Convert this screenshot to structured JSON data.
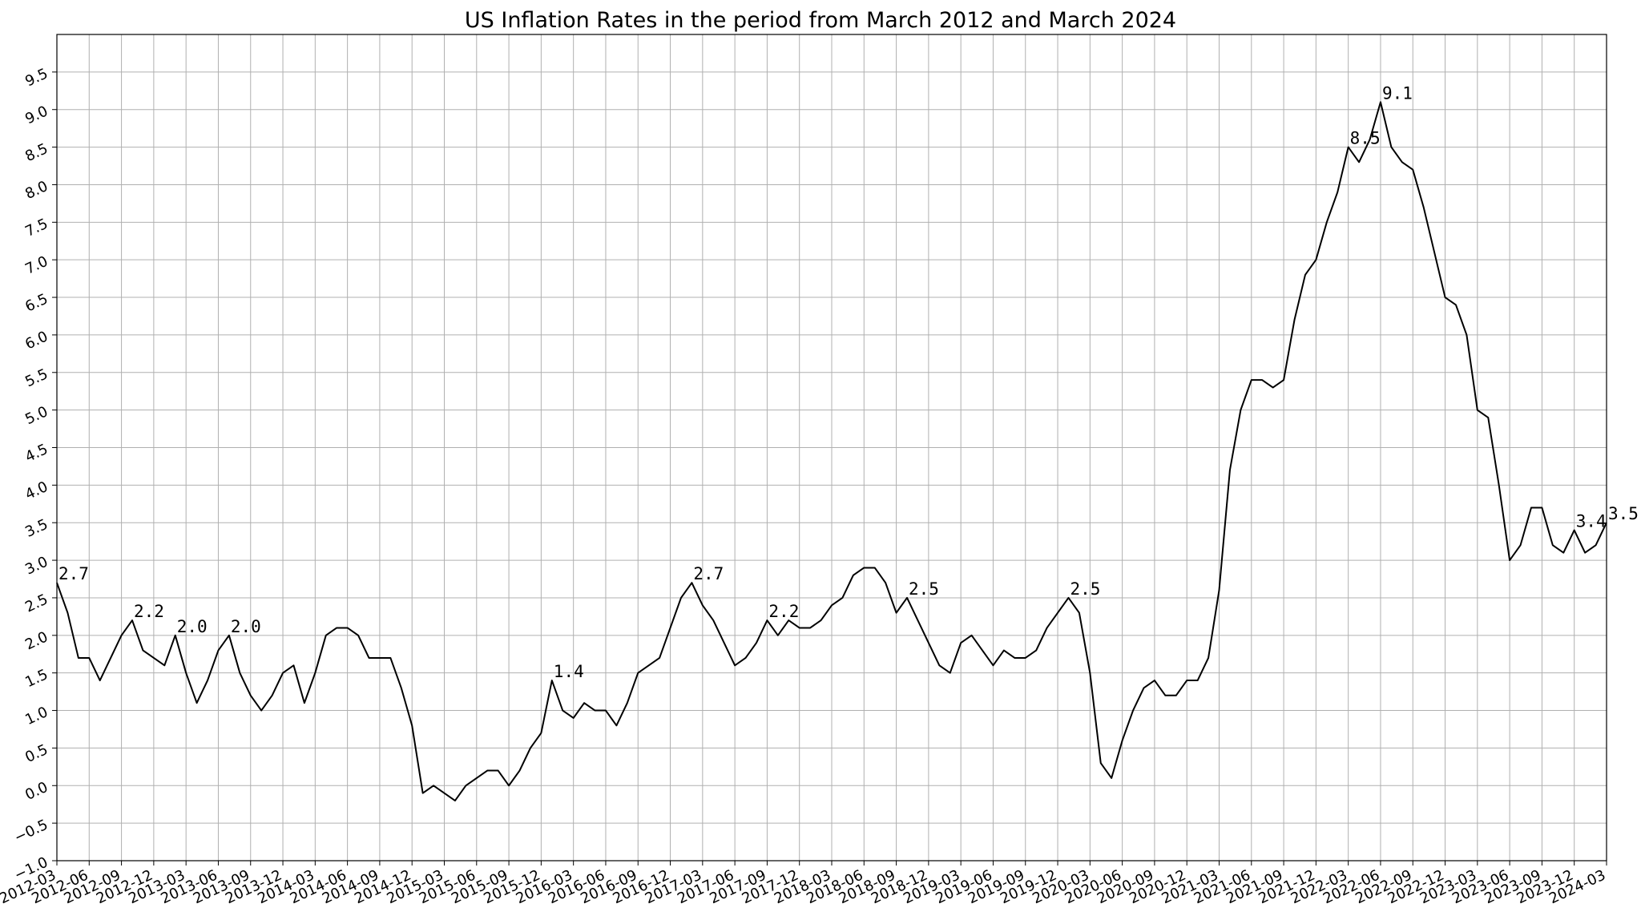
{
  "chart_data": {
    "type": "line",
    "title": "US Inflation Rates in the period from March 2012 and March 2024",
    "xlabel": "",
    "ylabel": "",
    "x_start": "2012-03",
    "x_end": "2024-03",
    "xlim": [
      "2012-03",
      "2024-03"
    ],
    "ylim": [
      -1.0,
      10.0
    ],
    "x_ticks": [
      "2012-03",
      "2012-06",
      "2012-09",
      "2012-12",
      "2013-03",
      "2013-06",
      "2013-09",
      "2013-12",
      "2014-03",
      "2014-06",
      "2014-09",
      "2014-12",
      "2015-03",
      "2015-06",
      "2015-09",
      "2015-12",
      "2016-03",
      "2016-06",
      "2016-09",
      "2016-12",
      "2017-03",
      "2017-06",
      "2017-09",
      "2017-12",
      "2018-03",
      "2018-06",
      "2018-09",
      "2018-12",
      "2019-03",
      "2019-06",
      "2019-09",
      "2019-12",
      "2020-03",
      "2020-06",
      "2020-09",
      "2020-12",
      "2021-03",
      "2021-06",
      "2021-09",
      "2021-12",
      "2022-03",
      "2022-06",
      "2022-09",
      "2022-12",
      "2023-03",
      "2023-06",
      "2023-09",
      "2023-12",
      "2024-03"
    ],
    "y_ticks": [
      "−1.0",
      "−0.5",
      "0.0",
      "0.5",
      "1.0",
      "1.5",
      "2.0",
      "2.5",
      "3.0",
      "3.5",
      "4.0",
      "4.5",
      "5.0",
      "5.5",
      "6.0",
      "6.5",
      "7.0",
      "7.5",
      "8.0",
      "8.5",
      "9.0",
      "9.5"
    ],
    "grid": true,
    "series": [
      {
        "color": "#000000",
        "values": [
          2.7,
          2.3,
          1.7,
          1.7,
          1.4,
          1.7,
          2.0,
          2.2,
          1.8,
          1.7,
          1.6,
          2.0,
          1.5,
          1.1,
          1.4,
          1.8,
          2.0,
          1.5,
          1.2,
          1.0,
          1.2,
          1.5,
          1.6,
          1.1,
          1.5,
          2.0,
          2.1,
          2.1,
          2.0,
          1.7,
          1.7,
          1.7,
          1.3,
          0.8,
          -0.1,
          0.0,
          -0.1,
          -0.2,
          0.0,
          0.1,
          0.2,
          0.2,
          0.0,
          0.2,
          0.5,
          0.7,
          1.4,
          1.0,
          0.9,
          1.1,
          1.0,
          1.0,
          0.8,
          1.1,
          1.5,
          1.6,
          1.7,
          2.1,
          2.5,
          2.7,
          2.4,
          2.2,
          1.9,
          1.6,
          1.7,
          1.9,
          2.2,
          2.0,
          2.2,
          2.1,
          2.1,
          2.2,
          2.4,
          2.5,
          2.8,
          2.9,
          2.9,
          2.7,
          2.3,
          2.5,
          2.2,
          1.9,
          1.6,
          1.5,
          1.9,
          2.0,
          1.8,
          1.6,
          1.8,
          1.7,
          1.7,
          1.8,
          2.1,
          2.3,
          2.5,
          2.3,
          1.5,
          0.3,
          0.1,
          0.6,
          1.0,
          1.3,
          1.4,
          1.2,
          1.2,
          1.4,
          1.4,
          1.7,
          2.6,
          4.2,
          5.0,
          5.4,
          5.4,
          5.3,
          5.4,
          6.2,
          6.8,
          7.0,
          7.5,
          7.9,
          8.5,
          8.3,
          8.6,
          9.1,
          8.5,
          8.3,
          8.2,
          7.7,
          7.1,
          6.5,
          6.4,
          6.0,
          5.0,
          4.9,
          4.0,
          3.0,
          3.2,
          3.7,
          3.7,
          3.2,
          3.1,
          3.4,
          3.1,
          3.2,
          3.5
        ]
      }
    ],
    "annotations": [
      {
        "x": "2012-03",
        "y": 2.7,
        "text": "2.7"
      },
      {
        "x": "2012-10",
        "y": 2.2,
        "text": "2.2"
      },
      {
        "x": "2013-02",
        "y": 2.0,
        "text": "2.0"
      },
      {
        "x": "2013-07",
        "y": 2.0,
        "text": "2.0"
      },
      {
        "x": "2016-01",
        "y": 1.4,
        "text": "1.4"
      },
      {
        "x": "2017-02",
        "y": 2.7,
        "text": "2.7"
      },
      {
        "x": "2017-09",
        "y": 2.2,
        "text": "2.2"
      },
      {
        "x": "2018-10",
        "y": 2.5,
        "text": "2.5"
      },
      {
        "x": "2020-01",
        "y": 2.5,
        "text": "2.5"
      },
      {
        "x": "2022-03",
        "y": 8.5,
        "text": "8.5"
      },
      {
        "x": "2022-06",
        "y": 9.1,
        "text": "9.1"
      },
      {
        "x": "2023-12",
        "y": 3.4,
        "text": "3.4"
      },
      {
        "x": "2024-03",
        "y": 3.5,
        "text": "3.5"
      }
    ]
  }
}
